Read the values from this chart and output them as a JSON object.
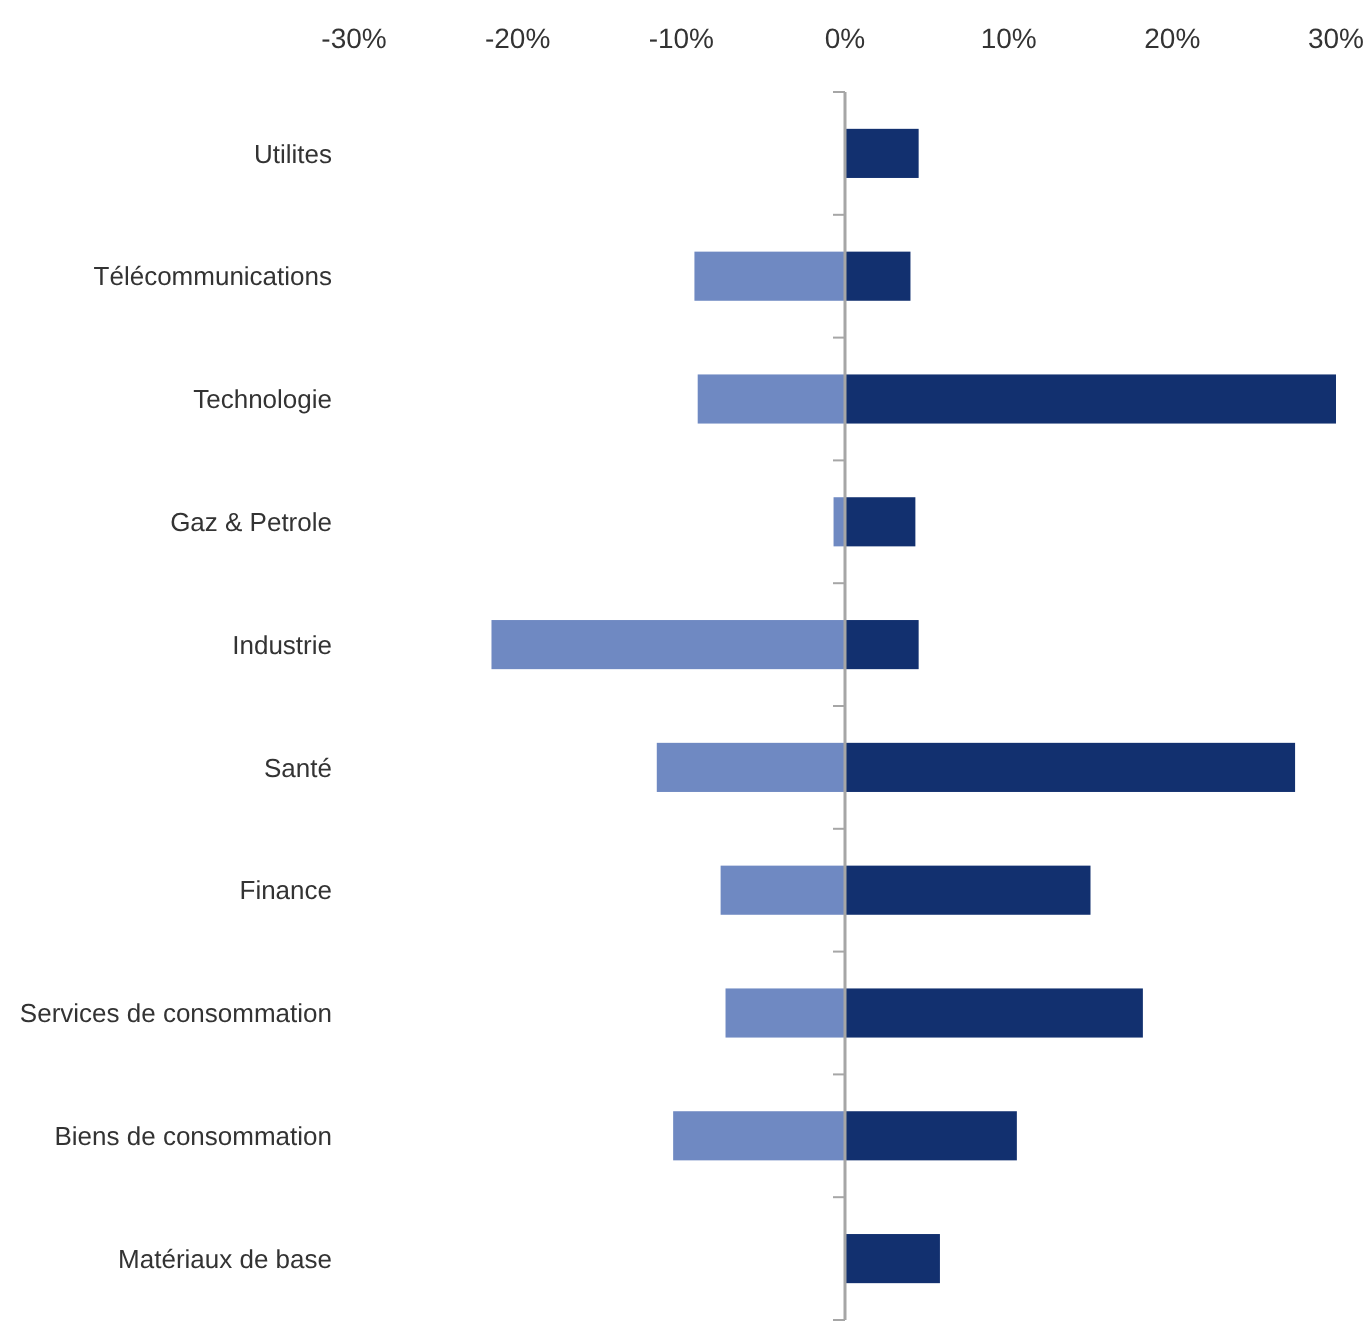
{
  "chart_data": {
    "type": "bar",
    "orientation": "horizontal",
    "stacked": true,
    "categories": [
      "Utilites",
      "Télécommunications",
      "Technologie",
      "Gaz & Petrole",
      "Industrie",
      "Santé",
      "Finance",
      "Services de consommation",
      "Biens de consommation",
      "Matériaux de base"
    ],
    "series": [
      {
        "color": "#6f89c2",
        "values": [
          0,
          -9.2,
          -9.0,
          -0.7,
          -21.6,
          -11.5,
          -7.6,
          -7.3,
          -10.5,
          0
        ]
      },
      {
        "color": "#12306f",
        "values": [
          4.5,
          4.0,
          30,
          4.3,
          4.5,
          27.5,
          15.0,
          18.2,
          10.5,
          5.8
        ]
      }
    ],
    "xlim": [
      -30,
      30
    ],
    "xticks": [
      {
        "value": -30,
        "label": "-30%"
      },
      {
        "value": -20,
        "label": "-20%"
      },
      {
        "value": -10,
        "label": "-10%"
      },
      {
        "value": 0,
        "label": "0%"
      },
      {
        "value": 10,
        "label": "10%"
      },
      {
        "value": 20,
        "label": "20%"
      },
      {
        "value": 30,
        "label": "30%"
      }
    ]
  }
}
